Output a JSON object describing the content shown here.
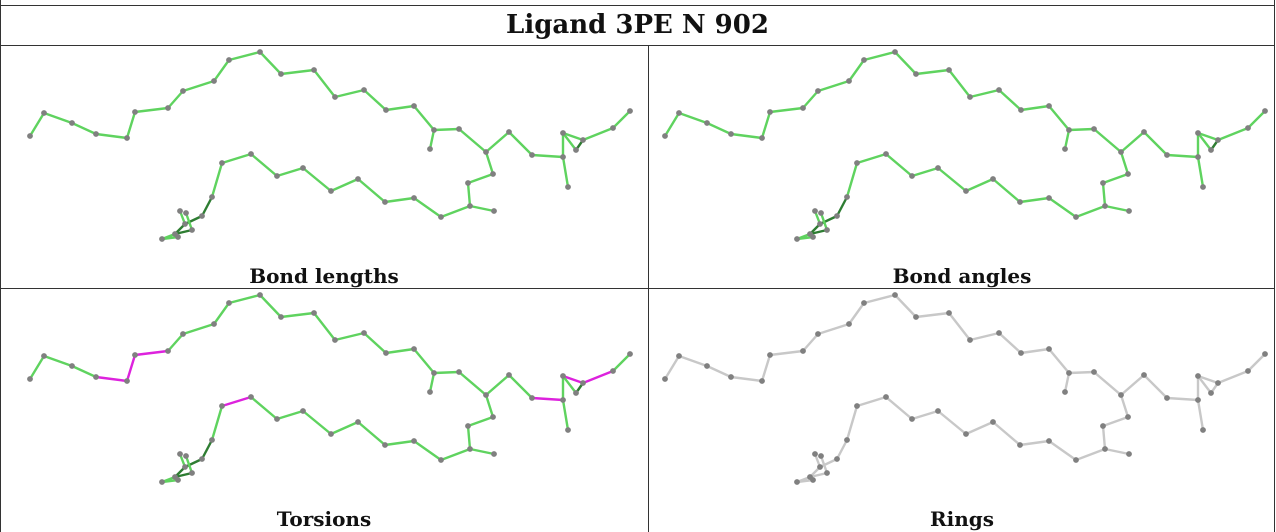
{
  "title": "Ligand 3PE N 902",
  "panels": [
    {
      "caption": "Bond lengths",
      "scheme": "lengths"
    },
    {
      "caption": "Bond angles",
      "scheme": "angles"
    },
    {
      "caption": "Torsions",
      "scheme": "torsions"
    },
    {
      "caption": "Rings",
      "scheme": "rings"
    }
  ],
  "colors": {
    "bond_light_green": "#5fd35f",
    "bond_dark_green": "#2e7d32",
    "bond_outlier_magenta": "#dd22dd",
    "bond_grey": "#c8c8c8",
    "atom_grey": "#808080"
  }
}
